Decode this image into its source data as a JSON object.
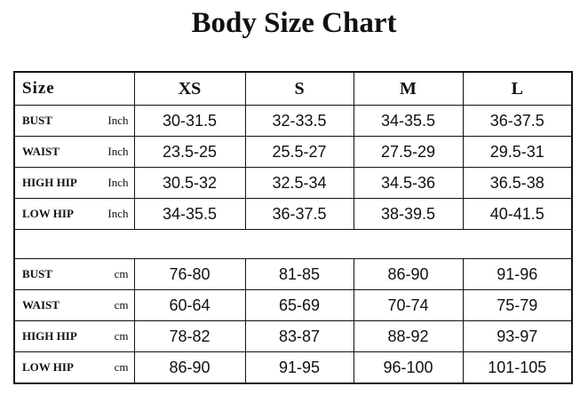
{
  "header": {
    "title": "Body Size Chart"
  },
  "table": {
    "columns": [
      "Size",
      "XS",
      "S",
      "M",
      "L"
    ],
    "inch_rows": [
      [
        "BUST",
        "Inch",
        "30-31.5",
        "32-33.5",
        "34-35.5",
        "36-37.5"
      ],
      [
        "WAIST",
        "Inch",
        "23.5-25",
        "25.5-27",
        "27.5-29",
        "29.5-31"
      ],
      [
        "HIGH HIP",
        "Inch",
        "30.5-32",
        "32.5-34",
        "34.5-36",
        "36.5-38"
      ],
      [
        "LOW HIP",
        "Inch",
        "34-35.5",
        "36-37.5",
        "38-39.5",
        "40-41.5"
      ]
    ],
    "cm_rows": [
      [
        "BUST",
        "cm",
        "76-80",
        "81-85",
        "86-90",
        "91-96"
      ],
      [
        "WAIST",
        "cm",
        "60-64",
        "65-69",
        "70-74",
        "75-79"
      ],
      [
        "HIGH HIP",
        "cm",
        "78-82",
        "83-87",
        "88-92",
        "93-97"
      ],
      [
        "LOW HIP",
        "cm",
        "86-90",
        "91-95",
        "96-100",
        "101-105"
      ]
    ]
  }
}
